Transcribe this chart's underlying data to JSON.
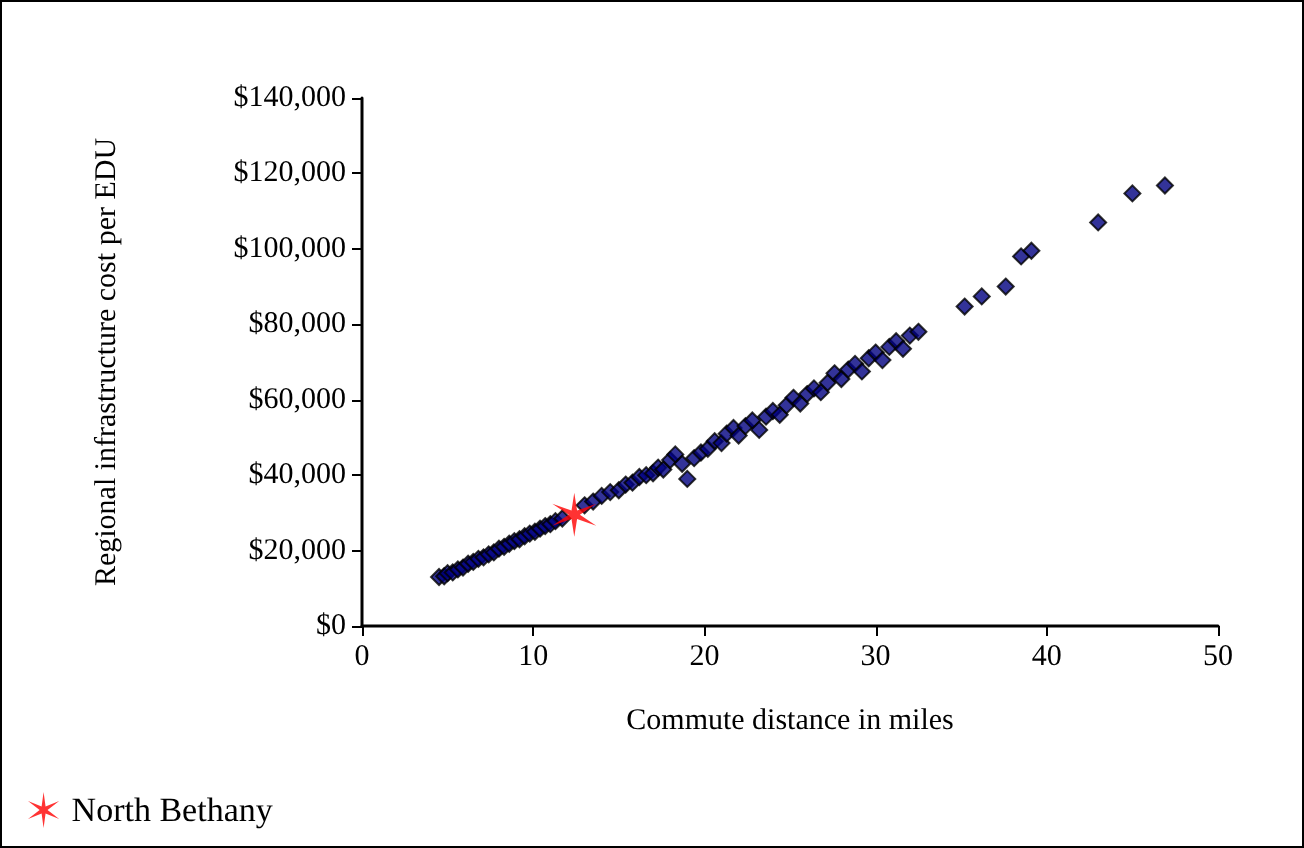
{
  "chart_data": {
    "type": "scatter",
    "xlabel": "Commute distance in miles",
    "ylabel": "Regional infrastructure cost per EDU",
    "xlim": [
      0,
      50
    ],
    "xticks": [
      0,
      10,
      20,
      30,
      40,
      50
    ],
    "ylim": [
      0,
      140000
    ],
    "yticks": [
      {
        "value": 0,
        "label": "$0"
      },
      {
        "value": 20000,
        "label": "$20,000"
      },
      {
        "value": 40000,
        "label": "$40,000"
      },
      {
        "value": 60000,
        "label": "$60,000"
      },
      {
        "value": 80000,
        "label": "$80,000"
      },
      {
        "value": 100000,
        "label": "$100,000"
      },
      {
        "value": 120000,
        "label": "$120,000"
      },
      {
        "value": 140000,
        "label": "$140,000"
      }
    ],
    "grid": false,
    "legend": "bottom left",
    "series": [
      {
        "color": "#000080",
        "marker": "diamond",
        "x": [
          4.5,
          4.8,
          5.0,
          5.3,
          5.6,
          5.9,
          6.2,
          6.5,
          6.8,
          7.1,
          7.4,
          7.7,
          8.0,
          8.3,
          8.6,
          8.9,
          9.2,
          9.5,
          9.8,
          10.1,
          10.4,
          10.7,
          11.0,
          11.3,
          11.7,
          13.0,
          13.5,
          14.0,
          14.5,
          15.0,
          15.4,
          15.8,
          16.2,
          16.6,
          17.0,
          17.3,
          17.6,
          18.0,
          18.3,
          18.7,
          19.0,
          19.4,
          19.8,
          20.2,
          20.6,
          21.0,
          21.3,
          21.7,
          22.0,
          22.4,
          22.8,
          23.2,
          23.6,
          24.0,
          24.4,
          24.8,
          25.2,
          25.6,
          26.0,
          26.4,
          26.8,
          27.2,
          27.6,
          28.0,
          28.4,
          28.8,
          29.2,
          29.6,
          30.0,
          30.4,
          30.8,
          31.2,
          31.6,
          32.0,
          32.5,
          35.2,
          36.2,
          37.6,
          38.5,
          39.1,
          43.0,
          45.0,
          46.9
        ],
        "values": [
          13000,
          13200,
          14000,
          14200,
          15000,
          15500,
          16500,
          17000,
          17800,
          18200,
          19000,
          19500,
          20500,
          21000,
          21800,
          22500,
          23000,
          23800,
          24500,
          25000,
          25800,
          26500,
          27000,
          27800,
          28500,
          32000,
          33000,
          34500,
          35500,
          36000,
          37500,
          38000,
          39500,
          40000,
          40500,
          42000,
          41500,
          44000,
          45500,
          43000,
          39000,
          44500,
          46000,
          47000,
          49000,
          48500,
          51000,
          52500,
          50500,
          53000,
          54500,
          52000,
          55500,
          57000,
          56000,
          58500,
          60500,
          59000,
          61500,
          63000,
          62000,
          64500,
          67000,
          65500,
          68000,
          69500,
          67500,
          71000,
          72500,
          70500,
          74000,
          75500,
          73500,
          77000,
          78000,
          84700,
          87400,
          90000,
          98000,
          99500,
          107000,
          114700,
          116800
        ]
      },
      {
        "name": "North Bethany",
        "color": "#ff0000",
        "marker": "cross",
        "x": [
          12.4
        ],
        "values": [
          29500
        ]
      }
    ]
  }
}
